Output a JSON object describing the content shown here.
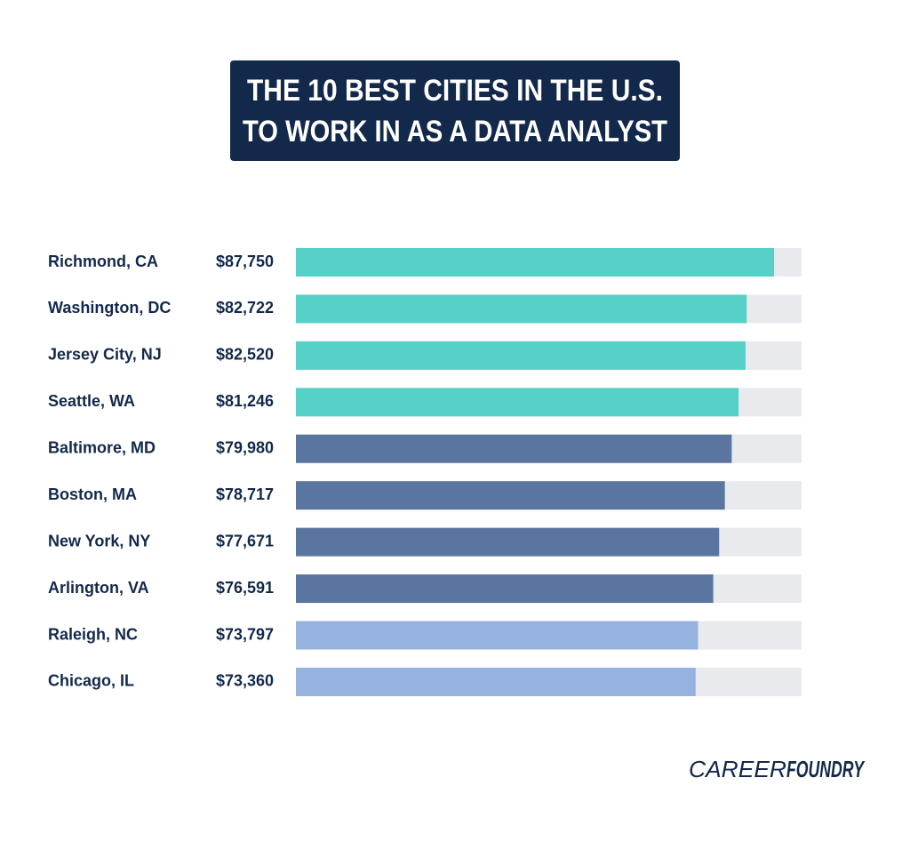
{
  "chart_data": {
    "type": "hbar",
    "title": [
      "THE 10 BEST CITIES IN THE U.S.",
      "TO WORK IN AS A DATA ANALYST"
    ],
    "categories": [
      "Richmond, CA",
      "Washington, DC",
      "Jersey City, NJ",
      "Seattle, WA",
      "Baltimore, MD",
      "Boston, MA",
      "New York, NY",
      "Arlington, VA",
      "Raleigh, NC",
      "Chicago, IL"
    ],
    "values": [
      87750,
      82722,
      82520,
      81246,
      79980,
      78717,
      77671,
      76591,
      73797,
      73360
    ],
    "value_labels": [
      "$87,750",
      "$82,722",
      "$82,520",
      "$81,246",
      "$79,980",
      "$78,717",
      "$77,671",
      "$76,591",
      "$73,797",
      "$73,360"
    ],
    "colors": [
      "#56d1c8",
      "#56d1c8",
      "#56d1c8",
      "#56d1c8",
      "#5a76a0",
      "#5a76a0",
      "#5a76a0",
      "#5a76a0",
      "#95b3de",
      "#95b3de"
    ],
    "track_color": "#e8eaed",
    "xlim": [
      0,
      92800
    ]
  },
  "branding": {
    "light": "CAREER",
    "bold": "FOUNDRY"
  }
}
